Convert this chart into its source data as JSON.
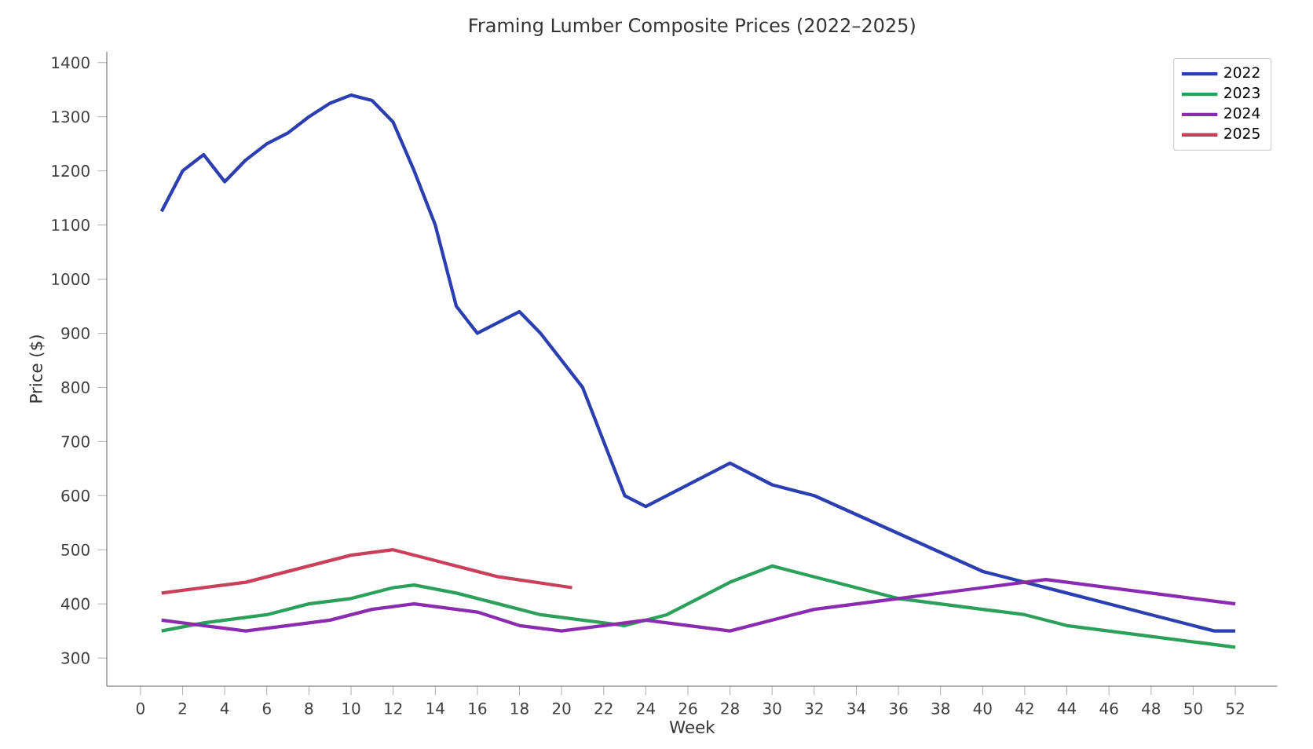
{
  "chart_data": {
    "type": "line",
    "title": "Framing Lumber Composite Prices (2022–2025)",
    "xlabel": "Week",
    "ylabel": "Price ($)",
    "xlim": [
      -1.6,
      54
    ],
    "ylim": [
      248,
      1420
    ],
    "xticks": [
      0,
      2,
      4,
      6,
      8,
      10,
      12,
      14,
      16,
      18,
      20,
      22,
      24,
      26,
      28,
      30,
      32,
      34,
      36,
      38,
      40,
      42,
      44,
      46,
      48,
      50,
      52
    ],
    "yticks": [
      300,
      400,
      500,
      600,
      700,
      800,
      900,
      1000,
      1100,
      1200,
      1300,
      1400
    ],
    "grid": false,
    "legend": "top right",
    "marker": "none",
    "line_style": "solid",
    "series": [
      {
        "name": "2022",
        "color": "#2b3fb0",
        "x": [
          1,
          2,
          3,
          4,
          5,
          6,
          7,
          8,
          9,
          10,
          11,
          12,
          13,
          14,
          15,
          16,
          18,
          19,
          21,
          23,
          24,
          28,
          30,
          32,
          36,
          40,
          44,
          48,
          50,
          51,
          52
        ],
        "values": [
          1125,
          1200,
          1230,
          1180,
          1220,
          1250,
          1270,
          1300,
          1325,
          1340,
          1330,
          1290,
          1200,
          1100,
          950,
          900,
          940,
          900,
          800,
          600,
          580,
          660,
          620,
          600,
          530,
          460,
          420,
          380,
          360,
          350,
          350
        ]
      },
      {
        "name": "2023",
        "color": "#2ca05a",
        "x": [
          1,
          3,
          5,
          6,
          8,
          10,
          12,
          13,
          15,
          17,
          19,
          21,
          23,
          25,
          28,
          30,
          32,
          36,
          40,
          42,
          44,
          48,
          52
        ],
        "values": [
          350,
          365,
          375,
          380,
          400,
          410,
          430,
          435,
          420,
          400,
          380,
          370,
          360,
          380,
          440,
          470,
          450,
          410,
          390,
          380,
          360,
          340,
          320
        ]
      },
      {
        "name": "2024",
        "color": "#8a2bb0",
        "x": [
          1,
          3,
          5,
          8,
          9,
          11,
          13,
          16,
          18,
          20,
          22,
          24,
          28,
          32,
          36,
          40,
          43,
          48,
          52
        ],
        "values": [
          370,
          360,
          350,
          365,
          370,
          390,
          400,
          385,
          360,
          350,
          360,
          370,
          350,
          390,
          410,
          430,
          445,
          420,
          400
        ]
      },
      {
        "name": "2025",
        "color": "#c8405a",
        "x": [
          1,
          5,
          8,
          10,
          12,
          14,
          16,
          17,
          20.5
        ],
        "values": [
          420,
          440,
          470,
          490,
          500,
          480,
          460,
          450,
          430
        ]
      }
    ]
  }
}
